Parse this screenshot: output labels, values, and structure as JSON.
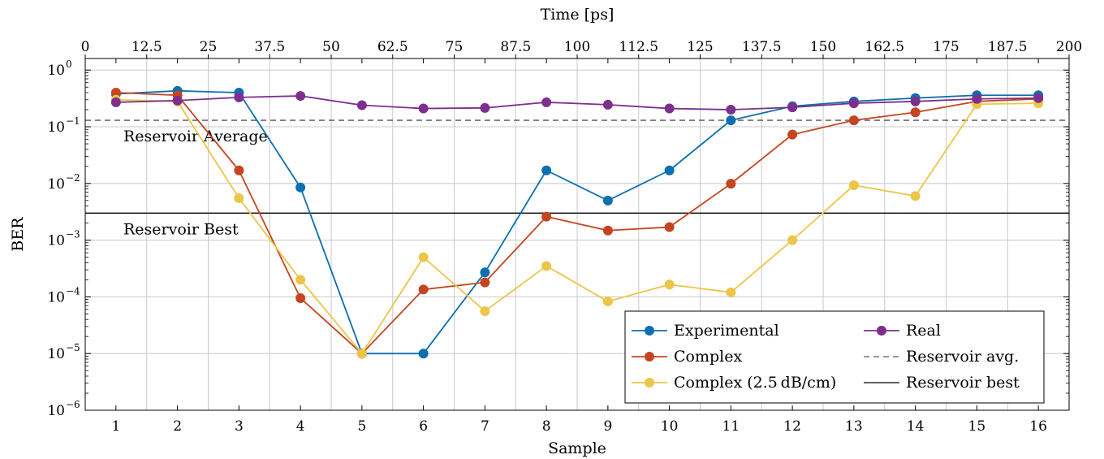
{
  "chart_data": {
    "type": "line",
    "xlabel": "Sample",
    "ylabel": "BER",
    "top_xlabel": "Time [ps]",
    "x": [
      1,
      2,
      3,
      4,
      5,
      6,
      7,
      8,
      9,
      10,
      11,
      12,
      13,
      14,
      15,
      16
    ],
    "xlim": [
      0.5,
      16.5
    ],
    "x_ticks": [
      "1",
      "2",
      "3",
      "4",
      "5",
      "6",
      "7",
      "8",
      "9",
      "10",
      "11",
      "12",
      "13",
      "14",
      "15",
      "16"
    ],
    "top_xlim": [
      0,
      200
    ],
    "top_ticks": [
      {
        "value": 0,
        "label": "0"
      },
      {
        "value": 12.5,
        "label": "12.5"
      },
      {
        "value": 25,
        "label": "25"
      },
      {
        "value": 37.5,
        "label": "37.5"
      },
      {
        "value": 50,
        "label": "50"
      },
      {
        "value": 62.5,
        "label": "62.5"
      },
      {
        "value": 75,
        "label": "75"
      },
      {
        "value": 87.5,
        "label": "87.5"
      },
      {
        "value": 100,
        "label": "100"
      },
      {
        "value": 112.5,
        "label": "112.5"
      },
      {
        "value": 125,
        "label": "125"
      },
      {
        "value": 137.5,
        "label": "137.5"
      },
      {
        "value": 150,
        "label": "150"
      },
      {
        "value": 162.5,
        "label": "162.5"
      },
      {
        "value": 175,
        "label": "175"
      },
      {
        "value": 187.5,
        "label": "187.5"
      },
      {
        "value": 200,
        "label": "200"
      }
    ],
    "y_scale": "log",
    "ylim": [
      1e-06,
      1.6
    ],
    "y_ticks": [
      {
        "exp": 0,
        "base": "10",
        "power": "0"
      },
      {
        "exp": -1,
        "base": "10",
        "power": "−1"
      },
      {
        "exp": -2,
        "base": "10",
        "power": "−2"
      },
      {
        "exp": -3,
        "base": "10",
        "power": "−3"
      },
      {
        "exp": -4,
        "base": "10",
        "power": "−4"
      },
      {
        "exp": -5,
        "base": "10",
        "power": "−5"
      },
      {
        "exp": -6,
        "base": "10",
        "power": "−6"
      }
    ],
    "grid": true,
    "series": [
      {
        "name": "Experimental",
        "color": "#0C6FB0",
        "values": [
          0.38,
          0.43,
          0.4,
          0.0085,
          1e-05,
          1e-05,
          0.00027,
          0.017,
          0.005,
          0.017,
          0.13,
          0.23,
          0.28,
          0.32,
          0.36,
          0.36
        ]
      },
      {
        "name": "Complex",
        "color": "#C4451F",
        "values": [
          0.4,
          0.36,
          0.017,
          9.5e-05,
          1e-05,
          0.000135,
          0.00018,
          0.0026,
          0.00148,
          0.0017,
          0.0099,
          0.073,
          0.13,
          0.18,
          0.28,
          0.31
        ]
      },
      {
        "name": "Complex (2.5 dB/cm)",
        "color": "#EBC649",
        "values": [
          0.3,
          0.28,
          0.0055,
          0.0002,
          1e-05,
          0.0005,
          5.6e-05,
          0.00035,
          8.3e-05,
          0.000165,
          0.00012,
          0.001,
          0.0093,
          0.006,
          0.25,
          0.26
        ]
      },
      {
        "name": "Real",
        "color": "#7D2F8E",
        "values": [
          0.27,
          0.29,
          0.33,
          0.35,
          0.24,
          0.21,
          0.215,
          0.27,
          0.245,
          0.21,
          0.2,
          0.22,
          0.26,
          0.28,
          0.31,
          0.32
        ]
      }
    ],
    "reference_lines": [
      {
        "name": "Reservoir avg.",
        "value": 0.13,
        "style": "dashed",
        "color": "#555555",
        "annotation": "Reservoir Average"
      },
      {
        "name": "Reservoir best",
        "value": 0.003,
        "style": "solid",
        "color": "#000000",
        "annotation": "Reservoir Best"
      }
    ],
    "legend": {
      "placement": "bottom-right",
      "columns": 2,
      "order": [
        "Experimental",
        "Real",
        "Complex",
        "Reservoir avg.",
        "Complex (2.5 dB/cm)",
        "Reservoir best"
      ]
    }
  }
}
